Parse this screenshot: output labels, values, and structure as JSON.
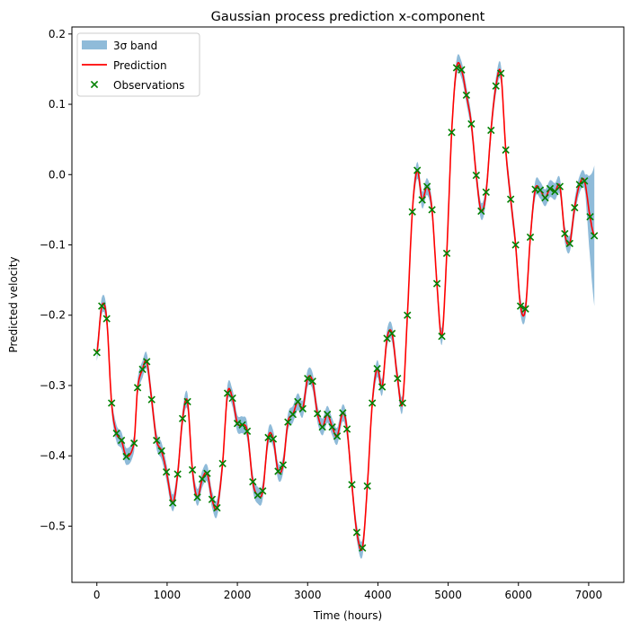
{
  "chart_data": {
    "type": "line",
    "title": "Gaussian process prediction x-component",
    "xlabel": "Time (hours)",
    "ylabel": "Predicted velocity",
    "xlim": [
      -355,
      7500
    ],
    "ylim": [
      -0.58,
      0.21
    ],
    "xticks": [
      0,
      1000,
      2000,
      3000,
      4000,
      5000,
      6000,
      7000
    ],
    "yticks": [
      -0.5,
      -0.4,
      -0.3,
      -0.2,
      -0.1,
      0.0,
      0.1,
      0.2
    ],
    "xtick_labels": [
      "0",
      "1000",
      "2000",
      "3000",
      "4000",
      "5000",
      "6000",
      "7000"
    ],
    "ytick_labels": [
      "−0.5",
      "−0.4",
      "−0.3",
      "−0.2",
      "−0.1",
      "0.0",
      "0.1",
      "0.2"
    ],
    "grid": false,
    "legend_position": "top-left",
    "colors": {
      "band": "#1f77b4",
      "prediction": "#ff0000",
      "observations": "#008000"
    },
    "series": [
      {
        "name": "3σ band",
        "kind": "band",
        "half_width": 0.012,
        "end_half_width": 0.1
      },
      {
        "name": "Prediction",
        "kind": "line"
      },
      {
        "name": "Observations",
        "kind": "scatter",
        "x": [
          0,
          70,
          140,
          210,
          280,
          350,
          420,
          530,
          580,
          650,
          710,
          780,
          850,
          920,
          990,
          1080,
          1150,
          1220,
          1290,
          1360,
          1430,
          1500,
          1570,
          1640,
          1710,
          1790,
          1860,
          1930,
          2000,
          2070,
          2140,
          2220,
          2290,
          2360,
          2440,
          2510,
          2580,
          2650,
          2720,
          2790,
          2860,
          2930,
          3000,
          3070,
          3140,
          3210,
          3280,
          3350,
          3420,
          3500,
          3560,
          3630,
          3700,
          3780,
          3850,
          3920,
          3990,
          4060,
          4130,
          4200,
          4280,
          4350,
          4420,
          4490,
          4560,
          4630,
          4700,
          4770,
          4840,
          4910,
          4980,
          5050,
          5120,
          5190,
          5260,
          5330,
          5400,
          5470,
          5540,
          5610,
          5680,
          5750,
          5820,
          5890,
          5960,
          6030,
          6100,
          6170,
          6240,
          6310,
          6380,
          6450,
          6520,
          6590,
          6660,
          6730,
          6800,
          6870,
          6940,
          7020,
          7080
        ],
        "y": [
          -0.253,
          -0.187,
          -0.205,
          -0.325,
          -0.368,
          -0.378,
          -0.401,
          -0.382,
          -0.303,
          -0.277,
          -0.266,
          -0.32,
          -0.378,
          -0.393,
          -0.423,
          -0.467,
          -0.426,
          -0.347,
          -0.323,
          -0.42,
          -0.459,
          -0.433,
          -0.425,
          -0.462,
          -0.474,
          -0.411,
          -0.311,
          -0.318,
          -0.354,
          -0.356,
          -0.365,
          -0.437,
          -0.456,
          -0.45,
          -0.374,
          -0.376,
          -0.422,
          -0.413,
          -0.352,
          -0.341,
          -0.323,
          -0.333,
          -0.29,
          -0.294,
          -0.34,
          -0.359,
          -0.341,
          -0.359,
          -0.372,
          -0.339,
          -0.362,
          -0.441,
          -0.509,
          -0.531,
          -0.443,
          -0.325,
          -0.276,
          -0.302,
          -0.233,
          -0.226,
          -0.29,
          -0.325,
          -0.2,
          -0.053,
          0.006,
          -0.036,
          -0.017,
          -0.05,
          -0.155,
          -0.23,
          -0.112,
          0.06,
          0.152,
          0.149,
          0.113,
          0.072,
          -0.001,
          -0.052,
          -0.025,
          0.063,
          0.126,
          0.144,
          0.035,
          -0.035,
          -0.1,
          -0.187,
          -0.191,
          -0.089,
          -0.021,
          -0.022,
          -0.033,
          -0.02,
          -0.024,
          -0.017,
          -0.084,
          -0.098,
          -0.047,
          -0.014,
          -0.009,
          -0.06,
          -0.087
        ]
      }
    ]
  }
}
